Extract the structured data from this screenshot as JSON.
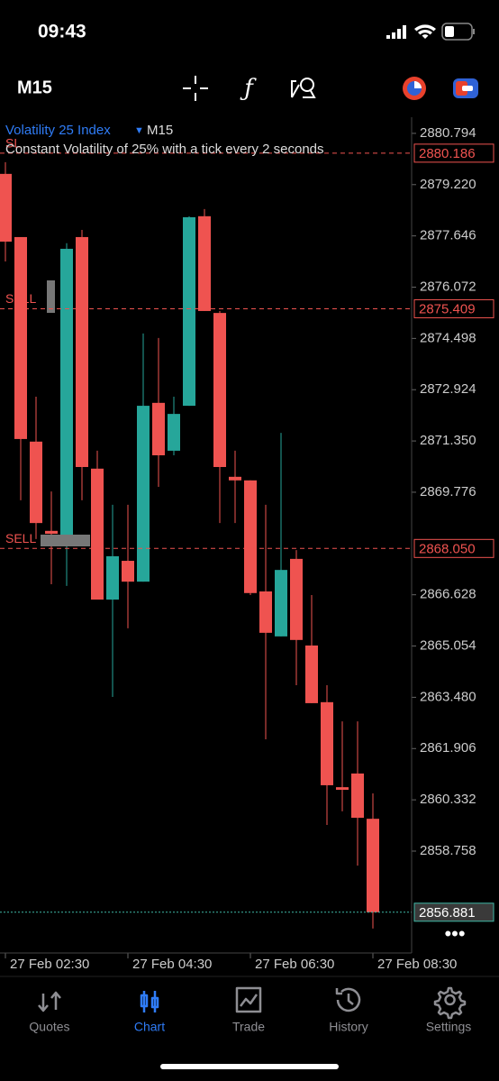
{
  "status_bar": {
    "time": "09:43"
  },
  "toolbar": {
    "timeframe": "M15"
  },
  "chart_data": {
    "type": "candlestick",
    "symbol": "Volatility 25 Index",
    "timeframe": "M15",
    "description": "Constant Volatility of 25% with a tick every 2 seconds",
    "categories": [
      "27 Feb 02:30",
      null,
      null,
      null,
      null,
      null,
      null,
      null,
      "27 Feb 04:30",
      null,
      null,
      null,
      null,
      null,
      null,
      null,
      "27 Feb 06:30",
      null,
      null,
      null,
      null,
      null,
      null,
      null,
      "27 Feb 08:30"
    ],
    "open": [
      2879.55,
      2877.61,
      2871.33,
      2868.59,
      2868.47,
      2877.61,
      2870.5,
      2866.48,
      2867.67,
      2867.03,
      2872.52,
      2871.05,
      2872.43,
      2878.25,
      2875.28,
      2870.25,
      2870.14,
      2866.73,
      2865.35,
      2867.73,
      2865.07,
      2863.33,
      2860.72,
      2861.14,
      2859.75
    ],
    "high": [
      2879.91,
      2877.61,
      2872.71,
      2869.8,
      2877.42,
      2877.83,
      2871.05,
      2869.39,
      2869.39,
      2874.65,
      2874.51,
      2872.71,
      2878.25,
      2878.47,
      2875.34,
      2871.05,
      2870.14,
      2869.39,
      2871.6,
      2868.0,
      2866.62,
      2863.85,
      2862.74,
      2862.74,
      2860.53
    ],
    "low": [
      2876.86,
      2869.53,
      2868.34,
      2866.95,
      2866.9,
      2869.53,
      2866.48,
      2863.49,
      2865.6,
      2867.03,
      2869.94,
      2870.91,
      2872.43,
      2875.34,
      2868.83,
      2868.83,
      2866.62,
      2862.19,
      2865.35,
      2863.85,
      2863.3,
      2859.56,
      2859.98,
      2858.31,
      2856.38
    ],
    "close": [
      2877.47,
      2871.41,
      2868.83,
      2868.5,
      2877.25,
      2870.55,
      2866.48,
      2867.81,
      2867.03,
      2872.43,
      2870.91,
      2872.18,
      2878.22,
      2875.34,
      2870.55,
      2870.14,
      2866.68,
      2865.46,
      2867.39,
      2865.24,
      2863.3,
      2860.78,
      2860.64,
      2859.78,
      2856.881
    ],
    "up_color": "#26a69a",
    "down_color": "#ef5350",
    "ylim": [
      2855.63,
      2881.29
    ],
    "yticks": [
      2880.794,
      {
        "value": 2879.22,
        "label": "2879.220"
      },
      2877.646,
      2876.072,
      2874.498,
      2872.924,
      {
        "value": 2871.35,
        "label": "2871.350"
      },
      2869.776,
      2866.628,
      2865.054,
      {
        "value": 2863.48,
        "label": "2863.480"
      },
      2861.906,
      2860.332,
      2858.758
    ],
    "grid": false,
    "levels": [
      {
        "name": "SL",
        "price": 2880.186,
        "price_label": "2880.186",
        "color": "#ef5350"
      },
      {
        "name": "SELL",
        "price": 2875.409,
        "price_label": "2875.409",
        "color": "#ef5350"
      },
      {
        "name": "SELL",
        "price": 2868.05,
        "price_label": "2868.050",
        "color": "#ef5350"
      },
      {
        "price": 2856.881,
        "price_label": "2856.881",
        "color": "#3fb8a6"
      }
    ]
  },
  "tab_bar": {
    "tabs": [
      "Quotes",
      "Chart",
      "Trade",
      "History",
      "Settings"
    ],
    "active": 1,
    "active_color": "#2f7cf6"
  }
}
